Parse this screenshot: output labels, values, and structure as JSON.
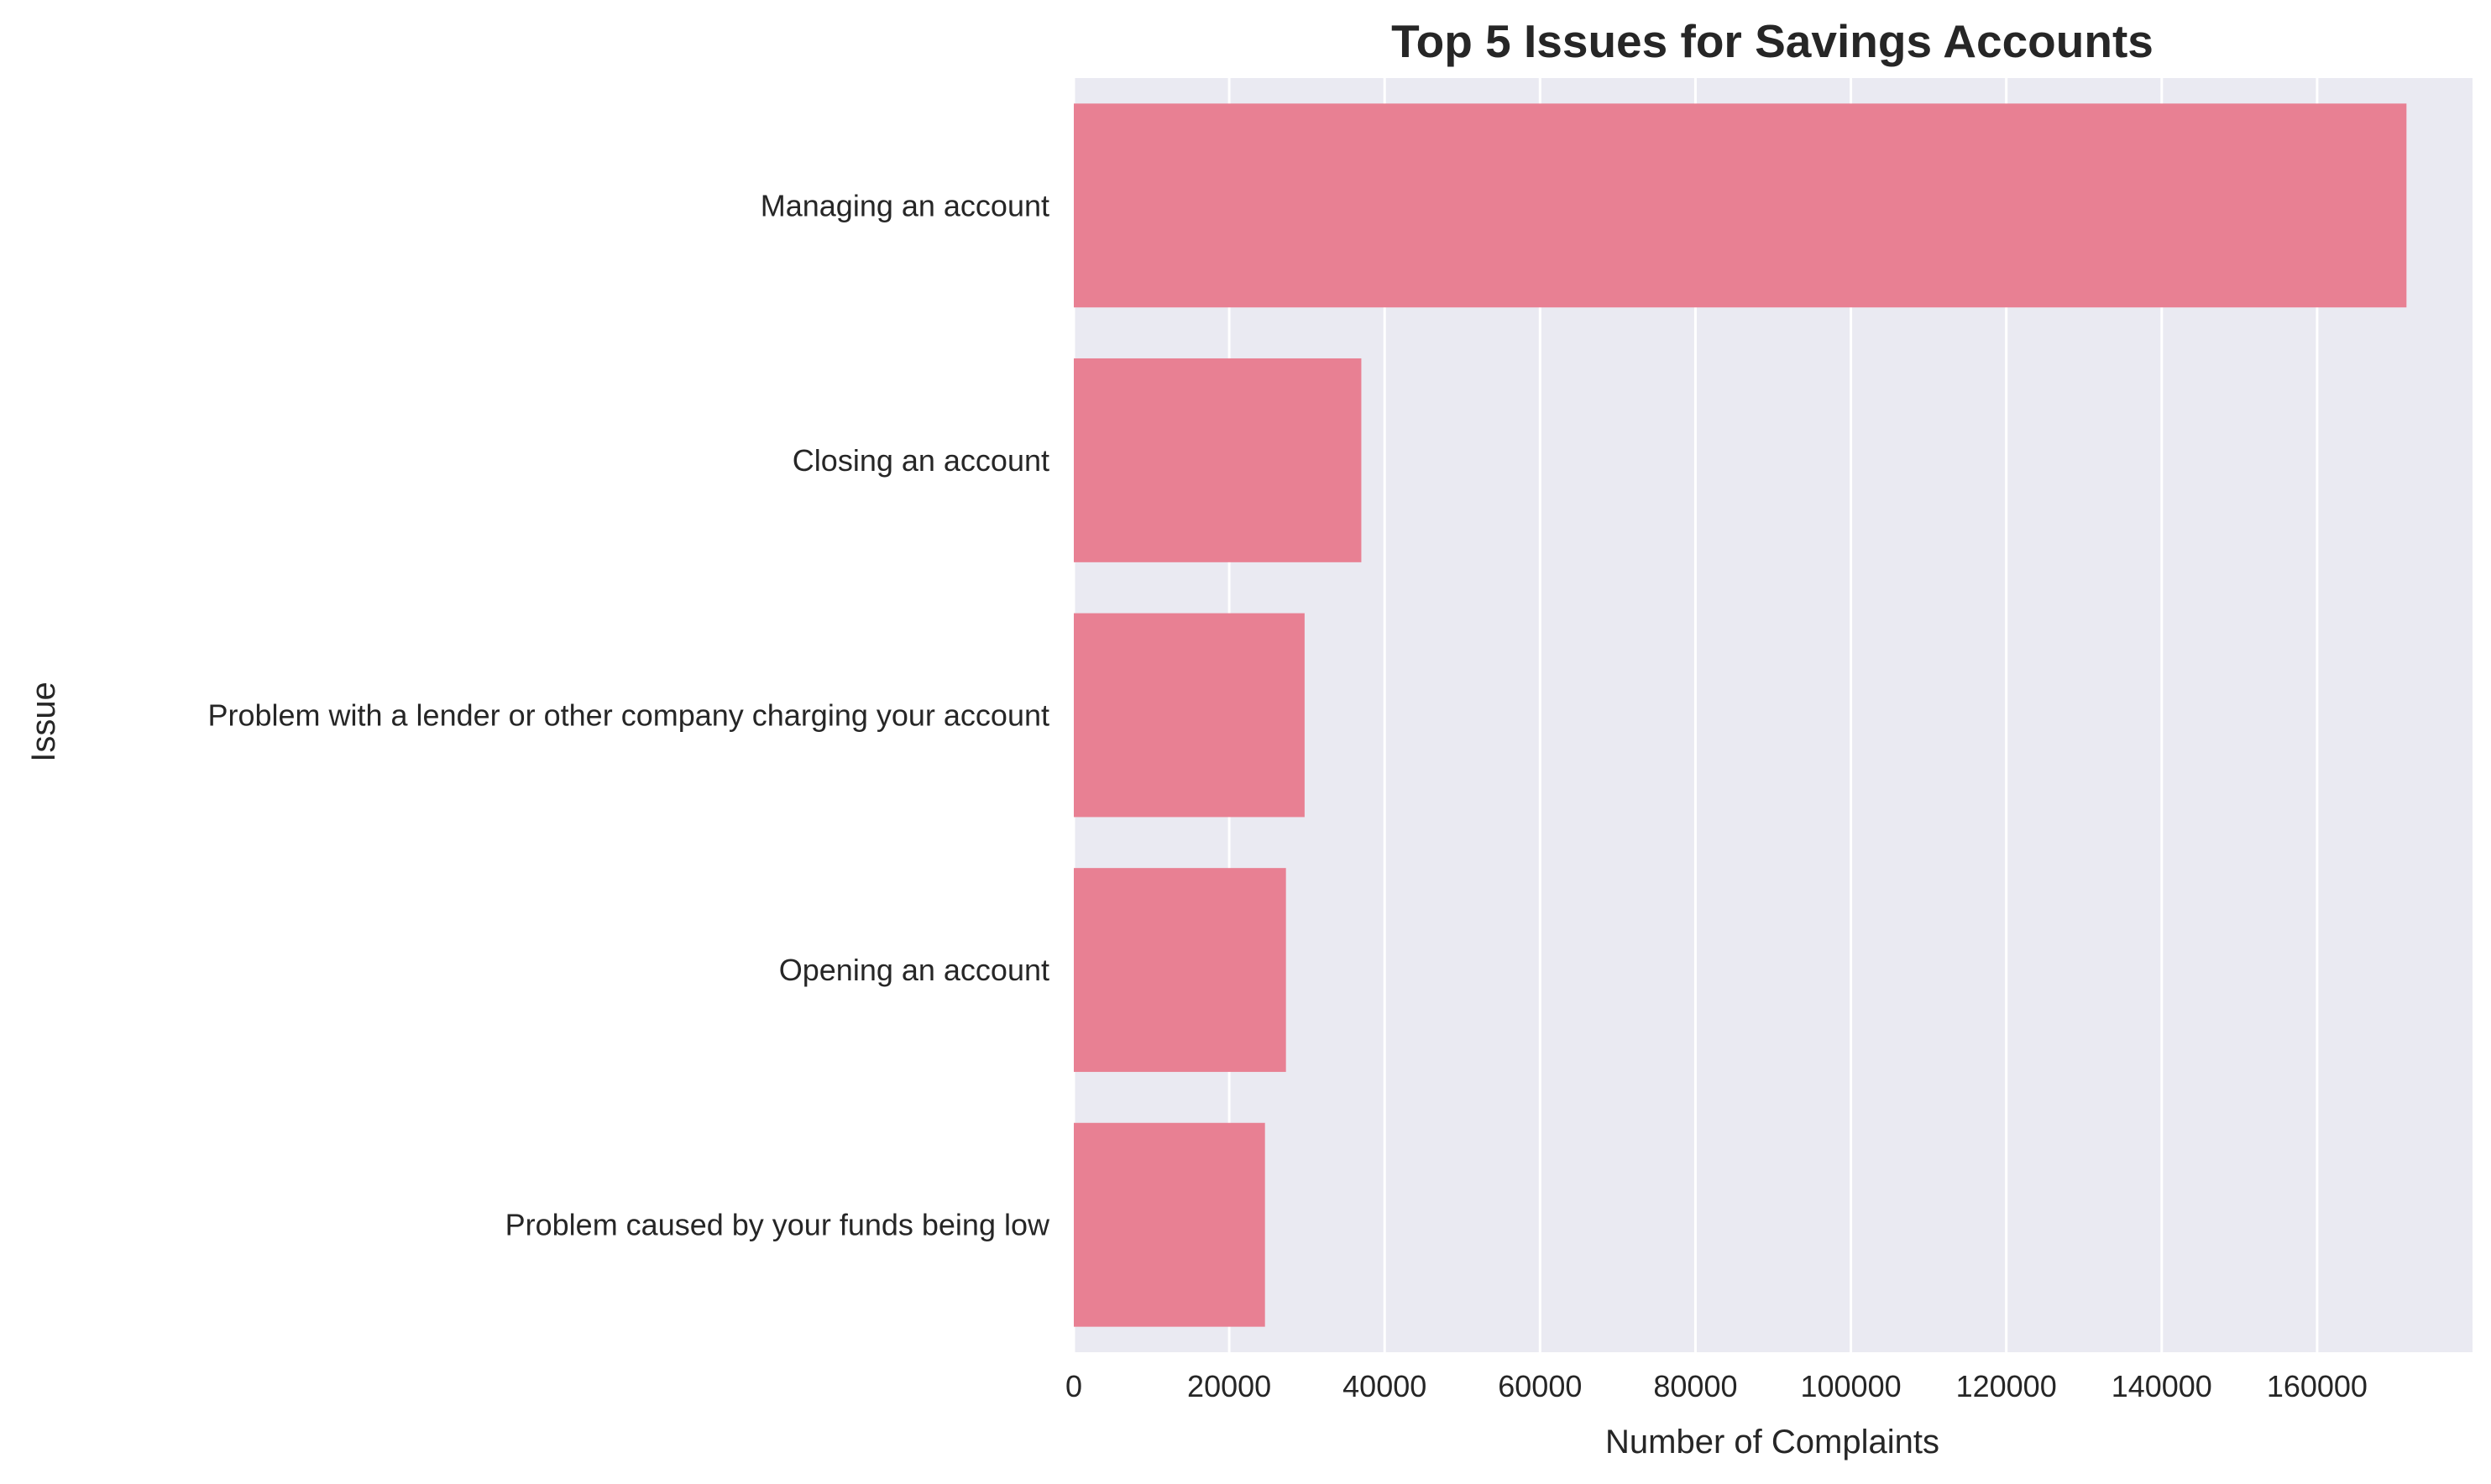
{
  "chart_data": {
    "type": "bar",
    "orientation": "horizontal",
    "title": "Top 5 Issues for Savings Accounts",
    "xlabel": "Number of Complaints",
    "ylabel": "Issue",
    "categories": [
      "Managing an account",
      "Closing an account",
      "Problem with a lender or other company charging your account",
      "Opening an account",
      "Problem caused by your funds being low"
    ],
    "values": [
      171500,
      37000,
      29700,
      27300,
      24600
    ],
    "xlim": [
      0,
      180000
    ],
    "xticks": [
      0,
      20000,
      40000,
      60000,
      80000,
      100000,
      120000,
      140000,
      160000
    ],
    "xtick_labels": [
      "0",
      "20000",
      "40000",
      "60000",
      "80000",
      "100000",
      "120000",
      "140000",
      "160000"
    ],
    "grid": "vertical",
    "colors": {
      "bar": "#e88093",
      "plot_background": "#eaeaf2",
      "grid": "#ffffff",
      "text": "#262626"
    }
  }
}
